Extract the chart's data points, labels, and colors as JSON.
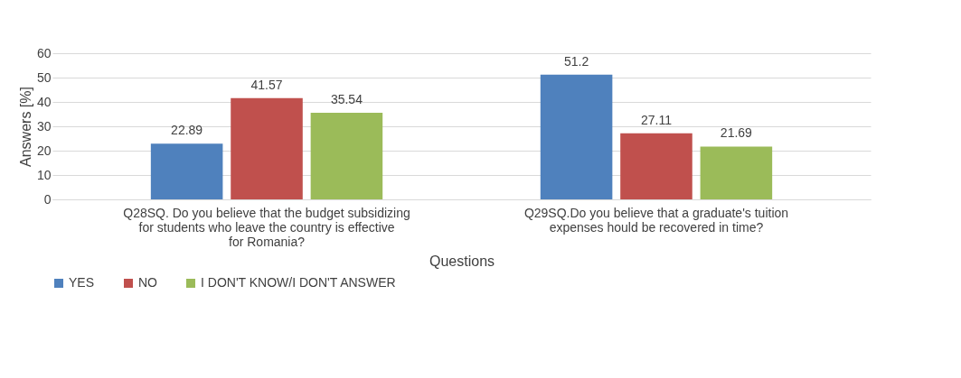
{
  "chart_data": {
    "type": "bar",
    "categories": [
      "Q28SQ. Do you believe that the budget subsidizing for students who leave the country is effective for Romania?",
      "Q29SQ.Do you believe that a graduate's tuition expenses hould be recovered in time?"
    ],
    "series": [
      {
        "name": "YES",
        "color": "#4f81bd",
        "values": [
          22.89,
          51.2
        ]
      },
      {
        "name": "NO",
        "color": "#c0504d",
        "values": [
          41.57,
          27.11
        ]
      },
      {
        "name": "I DON'T KNOW/I DON'T ANSWER",
        "color": "#9bbb59",
        "values": [
          35.54,
          21.69
        ]
      }
    ],
    "xlabel": "Questions",
    "ylabel": "Answers [%]",
    "ylim": [
      0,
      60
    ],
    "yticks": [
      0,
      10,
      20,
      30,
      40,
      50,
      60
    ],
    "grid": "y",
    "legend": "bottom",
    "data_labels": true
  }
}
